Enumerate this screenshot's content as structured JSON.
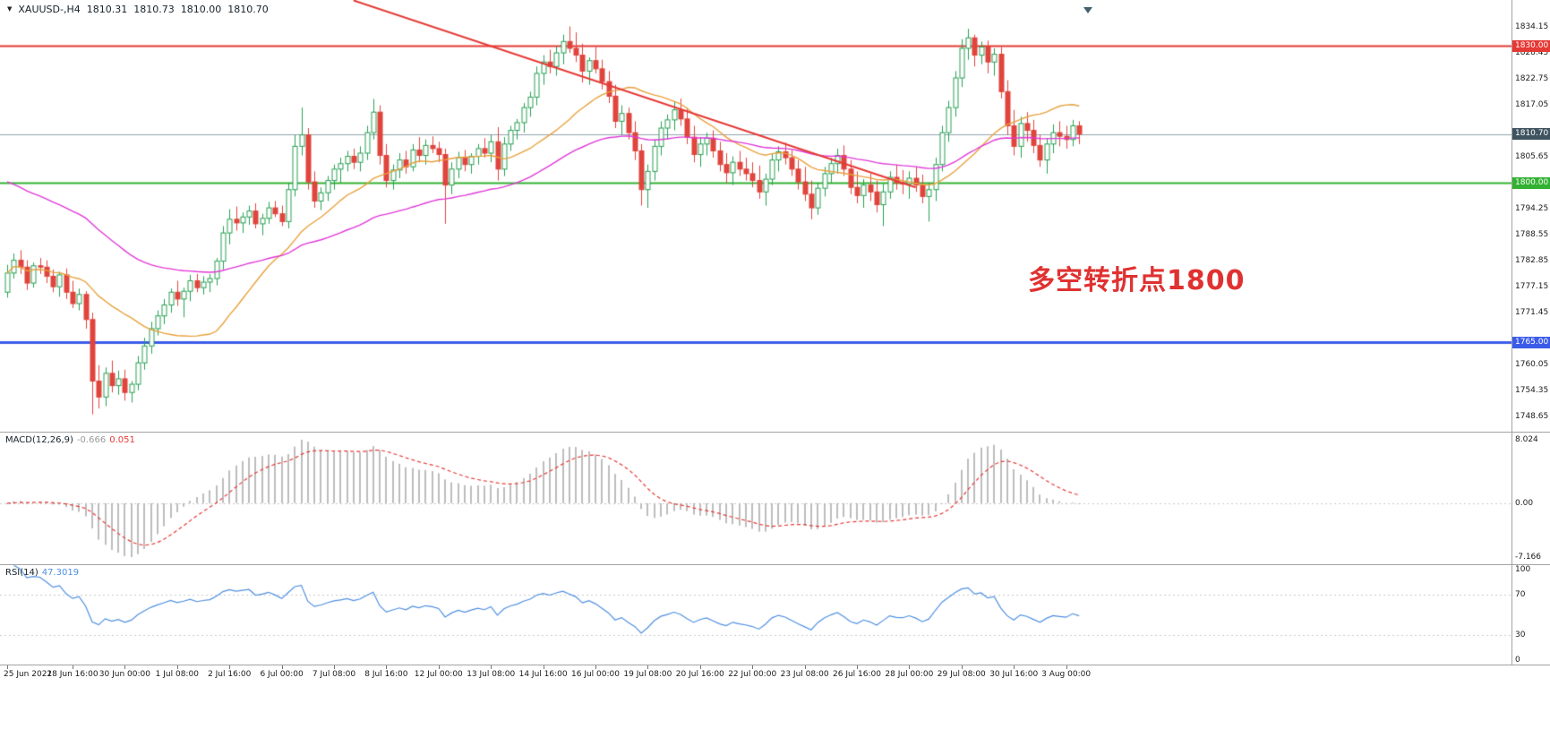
{
  "header": {
    "symbol_timeframe": "XAUUSD-,H4",
    "open": "1810.31",
    "high": "1810.73",
    "low": "1810.00",
    "close": "1810.70"
  },
  "icons": {
    "symbol_dropdown": "▼"
  },
  "annotation": {
    "text": "多空转折点1800",
    "color": "#e03131"
  },
  "colors": {
    "candle_bull": "#26a053",
    "candle_bear": "#e0443c",
    "line_red": "#e53935",
    "line_green": "#33b133",
    "line_blue": "#3c5be8",
    "line_current": "#90a0ac",
    "ma_orange": "#e8a13c",
    "ma_magenta": "#e038d8"
  },
  "price_axis": {
    "ticks": [
      "1834.15",
      "1828.45",
      "1822.75",
      "1817.05",
      "1805.65",
      "1794.25",
      "1788.55",
      "1782.85",
      "1777.15",
      "1771.45",
      "1760.05",
      "1754.35",
      "1748.65"
    ],
    "badges": [
      {
        "label": "1830.00",
        "price": 1830.0,
        "bg": "#e53935"
      },
      {
        "label": "1810.70",
        "price": 1810.7,
        "bg": "#3f5360"
      },
      {
        "label": "1800.00",
        "price": 1800.0,
        "bg": "#33b133"
      },
      {
        "label": "1765.00",
        "price": 1765.0,
        "bg": "#3c5be8"
      }
    ]
  },
  "macd_panel": {
    "name": "MACD(12,26,9)",
    "value_main": "-0.666",
    "value_signal": "0.051",
    "axis_ticks": [
      {
        "label": "8.024",
        "anchor": "max"
      },
      {
        "label": "0.00",
        "anchor": "zero"
      },
      {
        "label": "-7.166",
        "anchor": "min"
      }
    ]
  },
  "rsi_panel": {
    "name": "RSI(14)",
    "value": "47.3019",
    "levels": [
      70,
      30
    ],
    "axis_ticks": [
      {
        "label": "100",
        "value": 100
      },
      {
        "label": "70",
        "value": 70
      },
      {
        "label": "30",
        "value": 30
      },
      {
        "label": "0",
        "value": 0
      }
    ]
  },
  "chart_data": {
    "type": "candlestick",
    "symbol": "XAUUSD-",
    "timeframe": "H4",
    "y_range": {
      "top": 1840.1,
      "bottom": 1745.4
    },
    "hlines": [
      {
        "price": 1830.0,
        "color": "#e53935",
        "width": 2
      },
      {
        "price": 1810.7,
        "color": "#90a0ac",
        "width": 1
      },
      {
        "price": 1800.0,
        "color": "#33b133",
        "width": 2
      },
      {
        "price": 1765.0,
        "color": "#3c5be8",
        "width": 3
      }
    ],
    "trendline": {
      "i1": 53,
      "p1": 1840.0,
      "i2": 139,
      "p2": 1799.0,
      "color": "#e53935",
      "width": 2
    },
    "moving_averages": [
      {
        "type": "sma",
        "period": 20,
        "color": "#e8a13c"
      },
      {
        "type": "ema",
        "period": 55,
        "seed": 1801,
        "color": "#e038d8"
      }
    ],
    "macd": {
      "fast": 12,
      "slow": 26,
      "signal": 9,
      "histogram_color": "#bdbdbd",
      "signal_color": "#e53935"
    },
    "rsi": {
      "period": 14,
      "color": "#4f8fe0"
    },
    "x_labels": [
      {
        "i": 0,
        "t": "25 Jun 2021"
      },
      {
        "i": 10,
        "t": "28 Jun 16:00"
      },
      {
        "i": 18,
        "t": "30 Jun 00:00"
      },
      {
        "i": 26,
        "t": "1 Jul 08:00"
      },
      {
        "i": 34,
        "t": "2 Jul 16:00"
      },
      {
        "i": 42,
        "t": "6 Jul 00:00"
      },
      {
        "i": 50,
        "t": "7 Jul 08:00"
      },
      {
        "i": 58,
        "t": "8 Jul 16:00"
      },
      {
        "i": 66,
        "t": "12 Jul 00:00"
      },
      {
        "i": 74,
        "t": "13 Jul 08:00"
      },
      {
        "i": 82,
        "t": "14 Jul 16:00"
      },
      {
        "i": 90,
        "t": "16 Jul 00:00"
      },
      {
        "i": 98,
        "t": "19 Jul 08:00"
      },
      {
        "i": 106,
        "t": "20 Jul 16:00"
      },
      {
        "i": 114,
        "t": "22 Jul 00:00"
      },
      {
        "i": 122,
        "t": "23 Jul 08:00"
      },
      {
        "i": 130,
        "t": "26 Jul 16:00"
      },
      {
        "i": 138,
        "t": "28 Jul 00:00"
      },
      {
        "i": 146,
        "t": "29 Jul 08:00"
      },
      {
        "i": 154,
        "t": "30 Jul 16:00"
      },
      {
        "i": 162,
        "t": "3 Aug 00:00"
      }
    ],
    "candles": [
      [
        1776.0,
        1782.0,
        1774.8,
        1780.2
      ],
      [
        1780.2,
        1784.5,
        1779.0,
        1783.0
      ],
      [
        1783.0,
        1785.2,
        1780.0,
        1781.5
      ],
      [
        1781.5,
        1783.0,
        1776.5,
        1778.0
      ],
      [
        1778.0,
        1782.5,
        1777.0,
        1781.8
      ],
      [
        1781.8,
        1783.5,
        1780.0,
        1781.5
      ],
      [
        1781.5,
        1783.0,
        1778.0,
        1779.5
      ],
      [
        1779.5,
        1781.0,
        1776.0,
        1777.2
      ],
      [
        1777.2,
        1780.5,
        1775.0,
        1779.8
      ],
      [
        1779.8,
        1781.2,
        1774.5,
        1776.0
      ],
      [
        1776.0,
        1778.5,
        1772.5,
        1773.5
      ],
      [
        1773.5,
        1776.8,
        1772.0,
        1775.5
      ],
      [
        1775.5,
        1776.2,
        1768.0,
        1770.0
      ],
      [
        1770.0,
        1771.5,
        1749.2,
        1756.5
      ],
      [
        1756.5,
        1760.0,
        1750.5,
        1753.0
      ],
      [
        1753.0,
        1759.5,
        1751.0,
        1758.2
      ],
      [
        1758.2,
        1761.0,
        1754.0,
        1755.5
      ],
      [
        1755.5,
        1758.8,
        1753.5,
        1757.0
      ],
      [
        1757.0,
        1759.0,
        1752.2,
        1754.0
      ],
      [
        1754.0,
        1756.5,
        1751.8,
        1755.8
      ],
      [
        1755.8,
        1762.0,
        1754.5,
        1760.5
      ],
      [
        1760.5,
        1766.0,
        1759.0,
        1764.2
      ],
      [
        1764.2,
        1769.5,
        1762.5,
        1768.0
      ],
      [
        1768.0,
        1772.0,
        1766.5,
        1770.8
      ],
      [
        1770.8,
        1774.5,
        1769.0,
        1773.2
      ],
      [
        1773.2,
        1776.8,
        1771.5,
        1776.0
      ],
      [
        1776.0,
        1778.5,
        1773.0,
        1774.5
      ],
      [
        1774.5,
        1777.0,
        1770.5,
        1776.2
      ],
      [
        1776.2,
        1779.8,
        1774.0,
        1778.5
      ],
      [
        1778.5,
        1780.0,
        1776.0,
        1777.0
      ],
      [
        1777.0,
        1779.5,
        1775.5,
        1778.2
      ],
      [
        1778.2,
        1780.0,
        1776.0,
        1779.0
      ],
      [
        1779.0,
        1783.5,
        1777.5,
        1782.8
      ],
      [
        1782.8,
        1790.5,
        1781.0,
        1789.0
      ],
      [
        1789.0,
        1794.2,
        1786.5,
        1792.0
      ],
      [
        1792.0,
        1794.8,
        1789.5,
        1791.2
      ],
      [
        1791.2,
        1793.5,
        1789.0,
        1792.5
      ],
      [
        1792.5,
        1795.0,
        1790.8,
        1793.8
      ],
      [
        1793.8,
        1795.5,
        1790.0,
        1791.0
      ],
      [
        1791.0,
        1793.2,
        1788.5,
        1792.2
      ],
      [
        1792.2,
        1795.8,
        1791.0,
        1794.5
      ],
      [
        1794.5,
        1796.0,
        1792.5,
        1793.2
      ],
      [
        1793.2,
        1795.0,
        1790.5,
        1791.5
      ],
      [
        1791.5,
        1800.0,
        1790.0,
        1798.5
      ],
      [
        1798.5,
        1810.5,
        1797.0,
        1808.0
      ],
      [
        1808.0,
        1816.5,
        1806.0,
        1810.5
      ],
      [
        1810.5,
        1812.0,
        1798.5,
        1800.2
      ],
      [
        1800.2,
        1802.5,
        1794.5,
        1796.0
      ],
      [
        1796.0,
        1799.0,
        1794.0,
        1797.8
      ],
      [
        1797.8,
        1801.5,
        1796.0,
        1800.5
      ],
      [
        1800.5,
        1804.0,
        1798.5,
        1803.0
      ],
      [
        1803.0,
        1805.5,
        1800.0,
        1804.2
      ],
      [
        1804.2,
        1807.0,
        1802.5,
        1805.8
      ],
      [
        1805.8,
        1807.5,
        1803.0,
        1804.5
      ],
      [
        1804.5,
        1808.0,
        1802.5,
        1806.5
      ],
      [
        1806.5,
        1812.5,
        1805.0,
        1811.0
      ],
      [
        1811.0,
        1818.4,
        1809.5,
        1815.5
      ],
      [
        1815.5,
        1817.0,
        1804.0,
        1806.0
      ],
      [
        1806.0,
        1808.5,
        1799.0,
        1800.5
      ],
      [
        1800.5,
        1804.0,
        1798.5,
        1802.8
      ],
      [
        1802.8,
        1806.5,
        1801.0,
        1805.0
      ],
      [
        1805.0,
        1807.0,
        1802.0,
        1803.5
      ],
      [
        1803.5,
        1808.5,
        1802.5,
        1807.2
      ],
      [
        1807.2,
        1810.0,
        1804.5,
        1806.0
      ],
      [
        1806.0,
        1809.5,
        1804.0,
        1808.2
      ],
      [
        1808.2,
        1810.2,
        1806.5,
        1807.5
      ],
      [
        1807.5,
        1809.0,
        1804.5,
        1806.2
      ],
      [
        1806.2,
        1807.5,
        1791.0,
        1799.5
      ],
      [
        1799.5,
        1804.5,
        1797.5,
        1803.0
      ],
      [
        1803.0,
        1806.8,
        1801.0,
        1805.5
      ],
      [
        1805.5,
        1807.2,
        1802.5,
        1804.0
      ],
      [
        1804.0,
        1806.5,
        1802.0,
        1805.8
      ],
      [
        1805.8,
        1808.5,
        1804.0,
        1807.5
      ],
      [
        1807.5,
        1809.8,
        1805.5,
        1806.5
      ],
      [
        1806.5,
        1810.5,
        1804.5,
        1809.0
      ],
      [
        1809.0,
        1812.2,
        1800.5,
        1803.0
      ],
      [
        1803.0,
        1810.0,
        1801.5,
        1808.5
      ],
      [
        1808.5,
        1812.5,
        1807.0,
        1811.5
      ],
      [
        1811.5,
        1814.0,
        1809.5,
        1813.2
      ],
      [
        1813.2,
        1817.5,
        1811.0,
        1816.5
      ],
      [
        1816.5,
        1820.0,
        1814.5,
        1818.8
      ],
      [
        1818.8,
        1825.5,
        1817.0,
        1824.0
      ],
      [
        1824.0,
        1828.0,
        1821.5,
        1826.5
      ],
      [
        1826.5,
        1829.2,
        1824.0,
        1825.5
      ],
      [
        1825.5,
        1830.0,
        1823.5,
        1828.5
      ],
      [
        1828.5,
        1832.5,
        1826.0,
        1831.0
      ],
      [
        1831.0,
        1834.3,
        1828.5,
        1829.5
      ],
      [
        1829.5,
        1833.0,
        1826.5,
        1828.0
      ],
      [
        1828.0,
        1830.5,
        1822.0,
        1824.5
      ],
      [
        1824.5,
        1827.5,
        1821.5,
        1826.8
      ],
      [
        1826.8,
        1829.8,
        1824.0,
        1825.0
      ],
      [
        1825.0,
        1827.0,
        1820.5,
        1822.2
      ],
      [
        1822.2,
        1824.5,
        1817.5,
        1819.0
      ],
      [
        1819.0,
        1821.5,
        1812.0,
        1813.5
      ],
      [
        1813.5,
        1817.0,
        1810.5,
        1815.2
      ],
      [
        1815.2,
        1816.5,
        1809.5,
        1811.0
      ],
      [
        1811.0,
        1813.5,
        1805.0,
        1807.0
      ],
      [
        1807.0,
        1808.5,
        1795.0,
        1798.5
      ],
      [
        1798.5,
        1804.0,
        1794.5,
        1802.5
      ],
      [
        1802.5,
        1809.5,
        1800.5,
        1808.0
      ],
      [
        1808.0,
        1813.5,
        1806.0,
        1812.0
      ],
      [
        1812.0,
        1815.0,
        1809.5,
        1813.8
      ],
      [
        1813.8,
        1817.8,
        1811.5,
        1816.0
      ],
      [
        1816.0,
        1818.5,
        1812.5,
        1814.0
      ],
      [
        1814.0,
        1816.2,
        1808.5,
        1810.0
      ],
      [
        1810.0,
        1812.5,
        1804.5,
        1806.2
      ],
      [
        1806.2,
        1810.0,
        1803.5,
        1808.5
      ],
      [
        1808.5,
        1811.0,
        1806.0,
        1809.8
      ],
      [
        1809.8,
        1811.5,
        1805.5,
        1807.0
      ],
      [
        1807.0,
        1809.0,
        1802.5,
        1804.0
      ],
      [
        1804.0,
        1806.5,
        1800.0,
        1802.2
      ],
      [
        1802.2,
        1805.8,
        1799.5,
        1804.5
      ],
      [
        1804.5,
        1807.0,
        1801.5,
        1803.0
      ],
      [
        1803.0,
        1805.5,
        1800.5,
        1802.0
      ],
      [
        1802.0,
        1804.5,
        1799.0,
        1800.5
      ],
      [
        1800.5,
        1803.8,
        1796.5,
        1798.0
      ],
      [
        1798.0,
        1802.0,
        1795.0,
        1800.8
      ],
      [
        1800.8,
        1806.5,
        1799.5,
        1805.0
      ],
      [
        1805.0,
        1808.0,
        1802.5,
        1806.8
      ],
      [
        1806.8,
        1808.8,
        1804.0,
        1805.5
      ],
      [
        1805.5,
        1807.2,
        1801.5,
        1803.0
      ],
      [
        1803.0,
        1805.0,
        1798.5,
        1800.2
      ],
      [
        1800.2,
        1803.5,
        1796.0,
        1797.5
      ],
      [
        1797.5,
        1800.5,
        1792.0,
        1794.5
      ],
      [
        1794.5,
        1800.0,
        1793.0,
        1798.8
      ],
      [
        1798.8,
        1803.5,
        1797.0,
        1802.0
      ],
      [
        1802.0,
        1805.5,
        1800.0,
        1804.2
      ],
      [
        1804.2,
        1807.5,
        1802.0,
        1806.0
      ],
      [
        1806.0,
        1808.2,
        1801.5,
        1803.0
      ],
      [
        1803.0,
        1805.0,
        1797.5,
        1799.0
      ],
      [
        1799.0,
        1802.5,
        1795.5,
        1797.2
      ],
      [
        1797.2,
        1800.8,
        1794.5,
        1799.5
      ],
      [
        1799.5,
        1802.0,
        1796.0,
        1798.0
      ],
      [
        1798.0,
        1800.5,
        1793.5,
        1795.2
      ],
      [
        1795.2,
        1799.8,
        1790.5,
        1798.0
      ],
      [
        1798.0,
        1802.5,
        1796.5,
        1801.2
      ],
      [
        1801.2,
        1804.0,
        1798.5,
        1800.0
      ],
      [
        1800.0,
        1802.8,
        1797.5,
        1799.8
      ],
      [
        1799.8,
        1802.5,
        1796.5,
        1801.0
      ],
      [
        1801.0,
        1803.5,
        1798.0,
        1799.5
      ],
      [
        1799.5,
        1801.8,
        1795.5,
        1797.0
      ],
      [
        1797.0,
        1800.0,
        1791.5,
        1798.5
      ],
      [
        1798.5,
        1805.5,
        1796.0,
        1804.0
      ],
      [
        1804.0,
        1812.5,
        1802.5,
        1811.0
      ],
      [
        1811.0,
        1818.0,
        1809.0,
        1816.5
      ],
      [
        1816.5,
        1824.5,
        1814.5,
        1823.0
      ],
      [
        1823.0,
        1831.5,
        1821.0,
        1829.5
      ],
      [
        1829.5,
        1833.8,
        1827.0,
        1831.8
      ],
      [
        1831.8,
        1832.5,
        1825.5,
        1828.0
      ],
      [
        1828.0,
        1831.0,
        1826.0,
        1829.8
      ],
      [
        1829.8,
        1831.2,
        1824.0,
        1826.5
      ],
      [
        1826.5,
        1829.5,
        1823.5,
        1828.2
      ],
      [
        1828.2,
        1829.8,
        1818.5,
        1820.0
      ],
      [
        1820.0,
        1822.5,
        1810.5,
        1812.5
      ],
      [
        1812.5,
        1816.0,
        1806.0,
        1808.0
      ],
      [
        1808.0,
        1814.5,
        1805.5,
        1813.0
      ],
      [
        1813.0,
        1815.5,
        1809.0,
        1811.5
      ],
      [
        1811.5,
        1813.8,
        1806.5,
        1808.2
      ],
      [
        1808.2,
        1810.5,
        1803.5,
        1805.0
      ],
      [
        1805.0,
        1809.8,
        1802.0,
        1808.5
      ],
      [
        1808.5,
        1812.8,
        1806.5,
        1811.0
      ],
      [
        1811.0,
        1813.5,
        1808.0,
        1810.2
      ],
      [
        1810.2,
        1812.5,
        1807.5,
        1809.5
      ],
      [
        1809.5,
        1813.8,
        1808.0,
        1812.5
      ],
      [
        1812.5,
        1813.5,
        1808.5,
        1810.7
      ]
    ]
  }
}
